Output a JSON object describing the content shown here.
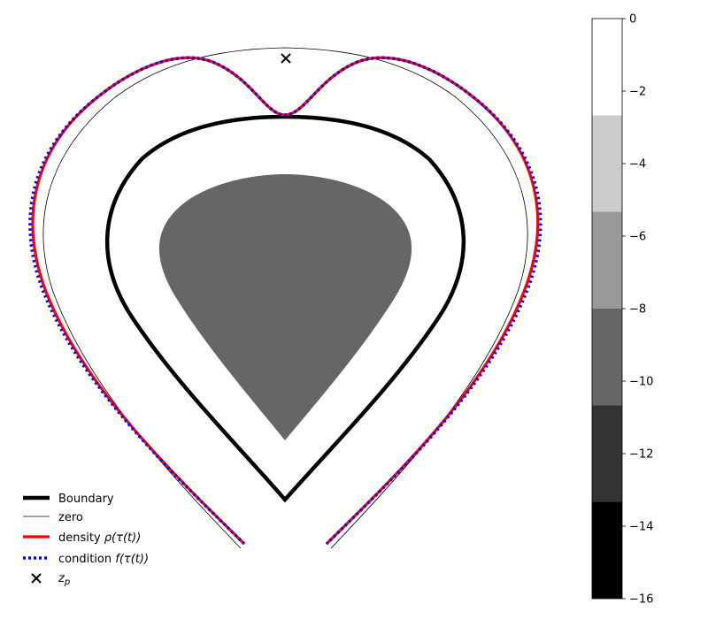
{
  "chart_data": {
    "type": "contour",
    "title": "",
    "legend": {
      "placement": "lower-left",
      "entries": [
        {
          "key": "boundary",
          "label": "Boundary",
          "color": "#000000",
          "style": "solid-thick"
        },
        {
          "key": "zero",
          "label": "zero",
          "color": "#000000",
          "style": "solid-thin"
        },
        {
          "key": "density",
          "label": "density ",
          "math": "ρ(τ(t))",
          "color": "#ff0000",
          "style": "solid"
        },
        {
          "key": "condition",
          "label": "condition ",
          "math": "f(τ(t))",
          "color": "#0000ff",
          "style": "dotted"
        },
        {
          "key": "zp",
          "label": "z",
          "sub": "p",
          "color": "#000000",
          "style": "x-marker"
        }
      ]
    },
    "colorbar": {
      "ticks": [
        0,
        -2,
        -4,
        -6,
        -8,
        -10,
        -12,
        -14,
        -16
      ],
      "tick_labels": [
        "0",
        "−2",
        "−4",
        "−6",
        "−8",
        "−10",
        "−12",
        "−14",
        "−16"
      ],
      "range": [
        -16,
        0
      ],
      "levels": [
        {
          "from": -16.0,
          "to": -13.33,
          "color": "#000000"
        },
        {
          "from": -13.33,
          "to": -10.67,
          "color": "#333333"
        },
        {
          "from": -10.67,
          "to": -8.0,
          "color": "#666666"
        },
        {
          "from": -8.0,
          "to": -5.33,
          "color": "#999999"
        },
        {
          "from": -5.33,
          "to": -2.67,
          "color": "#cccccc"
        },
        {
          "from": -2.67,
          "to": 0.0,
          "color": "#ffffff"
        }
      ]
    },
    "filled_region": {
      "level": "-10.67 to -8",
      "color": "#666666"
    },
    "grid": false,
    "axes_visible": false
  }
}
